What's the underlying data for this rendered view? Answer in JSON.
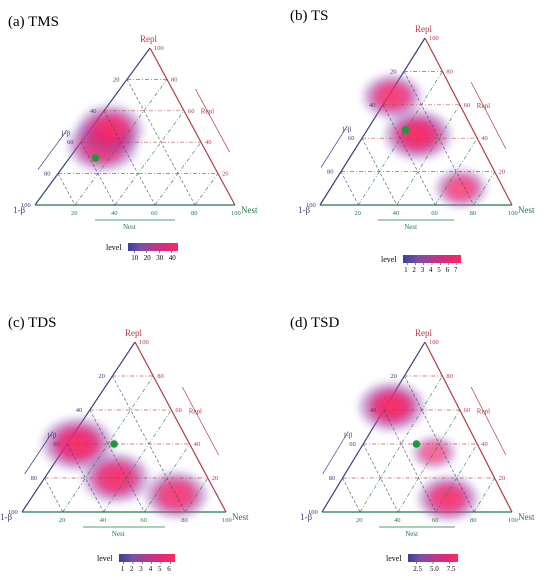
{
  "chart_data": [
    {
      "type": "ternary-density",
      "panel_label": "(a)",
      "title": "TMS",
      "axes": {
        "top": "Repl",
        "left": "1-β",
        "right": "Nest",
        "left_title": "1-β",
        "right_title": "Repl",
        "bottom_title": "Nest",
        "ticks": [
          20,
          40,
          60,
          80,
          100
        ]
      },
      "legend": {
        "title": "level",
        "ticks": [
          "10",
          "20",
          "30",
          "40"
        ]
      },
      "density_peaks": [
        {
          "one_minus_beta": 50,
          "repl": 38,
          "nest": 12,
          "weight": 1.0
        },
        {
          "one_minus_beta": 42,
          "repl": 48,
          "nest": 10,
          "weight": 0.9
        }
      ],
      "centroid": {
        "one_minus_beta": 57,
        "repl": 30,
        "nest": 13
      }
    },
    {
      "type": "ternary-density",
      "panel_label": "(b)",
      "title": "TS",
      "axes": {
        "top": "Repl",
        "left": "1-β",
        "right": "Nest",
        "left_title": "1-β",
        "right_title": "Repl",
        "bottom_title": "Nest",
        "ticks": [
          20,
          40,
          60,
          80,
          100
        ]
      },
      "legend": {
        "title": "level",
        "ticks": [
          "1",
          "2",
          "3",
          "4",
          "5",
          "6",
          "7"
        ]
      },
      "density_peaks": [
        {
          "one_minus_beta": 30,
          "repl": 42,
          "nest": 28,
          "weight": 1.0
        },
        {
          "one_minus_beta": 33,
          "repl": 65,
          "nest": 2,
          "weight": 0.8
        },
        {
          "one_minus_beta": 22,
          "repl": 10,
          "nest": 68,
          "weight": 0.6
        }
      ],
      "centroid": {
        "one_minus_beta": 35,
        "repl": 45,
        "nest": 20
      }
    },
    {
      "type": "ternary-density",
      "panel_label": "(c)",
      "title": "TDS",
      "axes": {
        "top": "Repl",
        "left": "1-β",
        "right": "Nest",
        "left_title": "1-β",
        "right_title": "Repl",
        "bottom_title": "Nest",
        "ticks": [
          20,
          40,
          60,
          80,
          100
        ]
      },
      "legend": {
        "title": "level",
        "ticks": [
          "1",
          "2",
          "3",
          "4",
          "5",
          "6"
        ]
      },
      "density_peaks": [
        {
          "one_minus_beta": 55,
          "repl": 40,
          "nest": 5,
          "weight": 1.0
        },
        {
          "one_minus_beta": 45,
          "repl": 20,
          "nest": 35,
          "weight": 0.9
        },
        {
          "one_minus_beta": 20,
          "repl": 10,
          "nest": 70,
          "weight": 0.8
        }
      ],
      "centroid": {
        "one_minus_beta": 37,
        "repl": 40,
        "nest": 23
      }
    },
    {
      "type": "ternary-density",
      "panel_label": "(d)",
      "title": "TSD",
      "axes": {
        "top": "Repl",
        "left": "1-β",
        "right": "Nest",
        "left_title": "1-β",
        "right_title": "Repl",
        "bottom_title": "Nest",
        "ticks": [
          20,
          40,
          60,
          80,
          100
        ]
      },
      "legend": {
        "title": "level",
        "ticks": [
          "2.5",
          "5.0",
          "7.5"
        ]
      },
      "density_peaks": [
        {
          "one_minus_beta": 35,
          "repl": 62,
          "nest": 3,
          "weight": 1.0
        },
        {
          "one_minus_beta": 30,
          "repl": 8,
          "nest": 62,
          "weight": 0.85
        },
        {
          "one_minus_beta": 25,
          "repl": 35,
          "nest": 40,
          "weight": 0.4
        }
      ],
      "centroid": {
        "one_minus_beta": 32,
        "repl": 40,
        "nest": 28
      }
    }
  ],
  "colors": {
    "gradient": [
      "#3b3f9a",
      "#7a4fa8",
      "#b23a8f",
      "#e0287a",
      "#ff2a5a"
    ],
    "left_axis": "#3a3f7a",
    "right_axis": "#b23a48",
    "bottom_axis": "#1f7a4a",
    "centroid": "#1a9a3a"
  }
}
